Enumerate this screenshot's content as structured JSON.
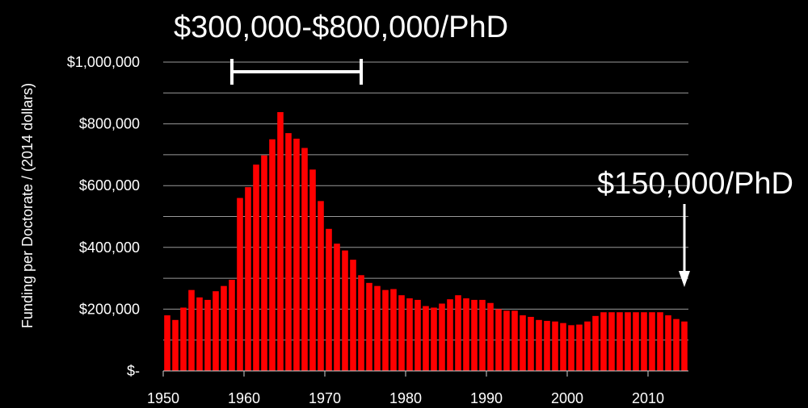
{
  "chart_data": {
    "type": "bar",
    "title": "",
    "xlabel": "",
    "ylabel": "Funding per Doctorate / (2014 dollars)",
    "ylim": [
      0,
      1000000
    ],
    "xlim": [
      1950,
      2014
    ],
    "x_ticks": [
      "1950",
      "1960",
      "1970",
      "1980",
      "1990",
      "2000",
      "2010"
    ],
    "y_ticks": [
      {
        "value": 0,
        "label": "$-"
      },
      {
        "value": 200000,
        "label": "$200,000"
      },
      {
        "value": 400000,
        "label": "$400,000"
      },
      {
        "value": 600000,
        "label": "$600,000"
      },
      {
        "value": 800000,
        "label": "$800,000"
      },
      {
        "value": 1000000,
        "label": "$1,000,000"
      }
    ],
    "grid": true,
    "bar_color": "#ff0000",
    "x": [
      1950,
      1951,
      1952,
      1953,
      1954,
      1955,
      1956,
      1957,
      1958,
      1959,
      1960,
      1961,
      1962,
      1963,
      1964,
      1965,
      1966,
      1967,
      1968,
      1969,
      1970,
      1971,
      1972,
      1973,
      1974,
      1975,
      1976,
      1977,
      1978,
      1979,
      1980,
      1981,
      1982,
      1983,
      1984,
      1985,
      1986,
      1987,
      1988,
      1989,
      1990,
      1991,
      1992,
      1993,
      1994,
      1995,
      1996,
      1997,
      1998,
      1999,
      2000,
      2001,
      2002,
      2003,
      2004,
      2005,
      2006,
      2007,
      2008,
      2009,
      2010,
      2011,
      2012,
      2013,
      2014
    ],
    "values": [
      180000,
      165000,
      205000,
      262000,
      238000,
      230000,
      258000,
      275000,
      295000,
      560000,
      595000,
      668000,
      698000,
      750000,
      838000,
      770000,
      752000,
      722000,
      652000,
      550000,
      460000,
      412000,
      390000,
      360000,
      310000,
      285000,
      275000,
      262000,
      265000,
      245000,
      235000,
      230000,
      210000,
      205000,
      218000,
      232000,
      245000,
      235000,
      230000,
      230000,
      220000,
      200000,
      195000,
      195000,
      180000,
      175000,
      165000,
      162000,
      160000,
      155000,
      148000,
      150000,
      160000,
      178000,
      190000,
      190000,
      190000,
      190000,
      190000,
      190000,
      190000,
      190000,
      180000,
      168000,
      160000
    ],
    "annotations": [
      {
        "text": "$300,000-$800,000/PhD",
        "type": "range",
        "x_start": 1958,
        "x_end": 1974,
        "y": 960000
      },
      {
        "text": "$150,000/PhD",
        "type": "arrow",
        "x": 2014,
        "y_from": 540000,
        "y_to": 260000
      }
    ]
  }
}
